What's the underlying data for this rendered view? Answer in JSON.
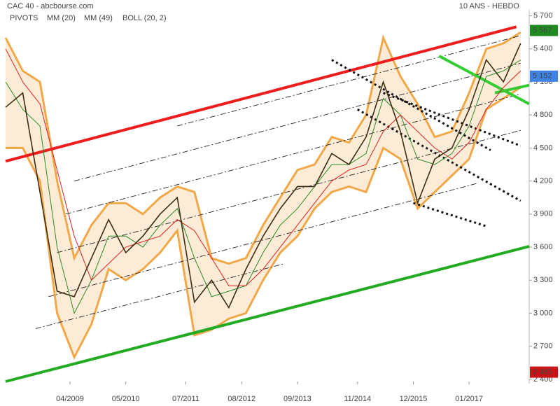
{
  "chart_data": {
    "type": "line",
    "title": "CAC 40 - abcbourse.com",
    "subtitle": "10 ANS - HEBDO",
    "x": [
      0,
      4,
      8,
      12,
      16,
      20,
      24,
      28,
      32,
      36,
      40,
      44,
      48,
      52,
      56,
      60,
      64,
      68,
      72,
      76,
      80,
      84,
      88,
      92,
      96,
      100,
      104,
      108,
      112,
      116,
      120
    ],
    "xlim": [
      0,
      122
    ],
    "xticks": [
      {
        "value": 15,
        "label": "04/2009"
      },
      {
        "value": 28,
        "label": "05/2010"
      },
      {
        "value": 42,
        "label": "07/2011"
      },
      {
        "value": 55,
        "label": "08/2012"
      },
      {
        "value": 68,
        "label": "09/2013"
      },
      {
        "value": 82,
        "label": "11/2014"
      },
      {
        "value": 95,
        "label": "12/2015"
      },
      {
        "value": 108,
        "label": "01/2017"
      }
    ],
    "ylim": [
      2380,
      5780
    ],
    "yticks": [
      {
        "value": 2400,
        "label": "2 400"
      },
      {
        "value": 2700,
        "label": "2 700"
      },
      {
        "value": 3000,
        "label": "3 000"
      },
      {
        "value": 3300,
        "label": "3 300"
      },
      {
        "value": 3600,
        "label": "3 600"
      },
      {
        "value": 3900,
        "label": "3 900"
      },
      {
        "value": 4200,
        "label": "4 200"
      },
      {
        "value": 4500,
        "label": "4 500"
      },
      {
        "value": 4800,
        "label": "4 800"
      },
      {
        "value": 5100,
        "label": "5 100"
      },
      {
        "value": 5400,
        "label": "5 400"
      },
      {
        "value": 5700,
        "label": "5 700"
      }
    ],
    "price": {
      "color": "#3b2d12",
      "values": [
        4870,
        5000,
        4100,
        3200,
        3150,
        3500,
        3850,
        3550,
        3700,
        3900,
        4050,
        3100,
        3300,
        3050,
        3400,
        3700,
        3950,
        4150,
        4150,
        4450,
        4350,
        4600,
        5100,
        4650,
        4000,
        4400,
        4500,
        4850,
        5300,
        5100,
        5450
      ]
    },
    "series": [
      {
        "name": "MM (20)",
        "color": "#2a8a2a",
        "values": [
          5100,
          4850,
          4700,
          3600,
          3000,
          3300,
          3700,
          3700,
          3600,
          3800,
          3950,
          3500,
          3150,
          3200,
          3250,
          3550,
          3800,
          3950,
          4150,
          4350,
          4350,
          4450,
          4950,
          4800,
          4400,
          4350,
          4450,
          4700,
          5150,
          5200,
          5300
        ]
      },
      {
        "name": "MM (49)",
        "color": "#e02020",
        "values": [
          5400,
          5100,
          4900,
          4300,
          3700,
          3300,
          3450,
          3600,
          3650,
          3700,
          3850,
          3750,
          3500,
          3250,
          3250,
          3400,
          3600,
          3800,
          4000,
          4200,
          4300,
          4350,
          4650,
          4800,
          4650,
          4500,
          4400,
          4550,
          4850,
          5050,
          5200
        ]
      }
    ],
    "bollinger": {
      "name": "BOLL (20, 2)",
      "color": "#f0a848",
      "upper": [
        5500,
        5200,
        5100,
        4200,
        3500,
        3800,
        4000,
        4000,
        3900,
        4050,
        4150,
        4100,
        3500,
        3450,
        3500,
        3800,
        4050,
        4300,
        4350,
        4600,
        4550,
        4800,
        5500,
        5150,
        4900,
        4600,
        4650,
        5000,
        5400,
        5450,
        5550
      ],
      "lower": [
        4500,
        4500,
        4200,
        3000,
        2600,
        2900,
        3400,
        3300,
        3400,
        3550,
        3750,
        2800,
        2850,
        2950,
        3000,
        3300,
        3550,
        3700,
        3950,
        4100,
        4150,
        4100,
        4500,
        4400,
        3950,
        4100,
        4250,
        4400,
        4850,
        4950,
        5050
      ]
    },
    "pivots": {
      "name": "PIVOTS",
      "color": "#222222",
      "lines": [
        {
          "x": [
            7,
            65
          ],
          "y": [
            2860,
            3450
          ]
        },
        {
          "x": [
            10,
            110
          ],
          "y": [
            3150,
            4180
          ]
        },
        {
          "x": [
            12,
            120
          ],
          "y": [
            3550,
            4660
          ]
        },
        {
          "x": [
            14,
            120
          ],
          "y": [
            3900,
            4990
          ]
        },
        {
          "x": [
            16,
            120
          ],
          "y": [
            4200,
            5270
          ]
        },
        {
          "x": [
            40,
            120
          ],
          "y": [
            4700,
            5520
          ]
        }
      ]
    },
    "trendlines": [
      {
        "color": "#ee1c1c",
        "style": "solid",
        "x": [
          0,
          119
        ],
        "y": [
          4380,
          5600
        ]
      },
      {
        "color": "#22aa22",
        "style": "solid",
        "x": [
          0,
          122
        ],
        "y": [
          2380,
          3607
        ]
      },
      {
        "color": "#111111",
        "style": "dotted",
        "x": [
          76,
          113
        ],
        "y": [
          5300,
          4480
        ]
      },
      {
        "color": "#111111",
        "style": "dotted",
        "x": [
          88,
          120
        ],
        "y": [
          5000,
          4520
        ]
      },
      {
        "color": "#111111",
        "style": "dotted",
        "x": [
          82,
          120
        ],
        "y": [
          4850,
          4020
        ]
      },
      {
        "color": "#111111",
        "style": "dotted",
        "x": [
          95,
          112
        ],
        "y": [
          4000,
          3790
        ]
      },
      {
        "color": "#33cc33",
        "style": "solid",
        "x": [
          101,
          122
        ],
        "y": [
          5335,
          4900
        ]
      },
      {
        "color": "#33cc33",
        "style": "solid",
        "x": [
          114,
          122
        ],
        "y": [
          5000,
          5070
        ]
      }
    ],
    "price_tags": [
      {
        "value": 5567,
        "label": "5 567",
        "color": "#1e8c1e"
      },
      {
        "value": 5152,
        "label": "5 152",
        "color": "#3f82e6"
      },
      {
        "value": 2465,
        "label": "2 465",
        "color": "#c81414"
      }
    ]
  }
}
